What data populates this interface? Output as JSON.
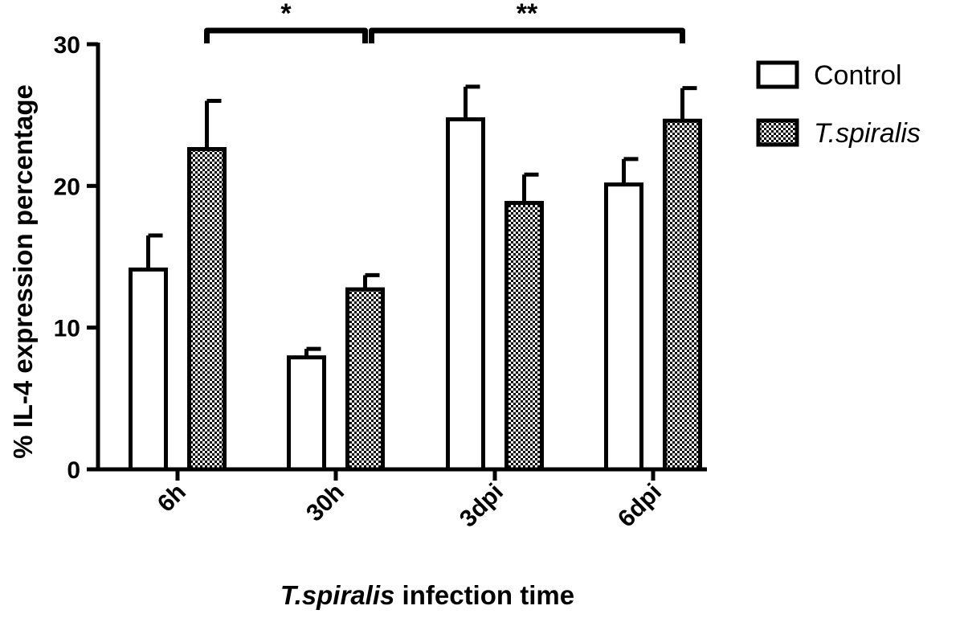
{
  "chart_data": {
    "type": "bar",
    "categories": [
      "6h",
      "30h",
      "3dpi",
      "6dpi"
    ],
    "series": [
      {
        "name": "Control",
        "values": [
          14.1,
          7.9,
          24.7,
          20.1
        ],
        "errors": [
          2.4,
          0.6,
          2.3,
          1.8
        ],
        "fill": "plain"
      },
      {
        "name": "T.spiralis",
        "values": [
          22.6,
          12.7,
          18.8,
          24.6
        ],
        "errors": [
          3.4,
          1.0,
          2.0,
          2.3
        ],
        "fill": "checker"
      }
    ],
    "ylim": [
      0,
      30
    ],
    "yticks": [
      0,
      10,
      20,
      30
    ],
    "ylabel": "% IL-4 expression percentage",
    "xlabel_italic": "T.spiralis",
    "xlabel_rest": " infection time",
    "legend_position": "top-right",
    "significance": [
      {
        "label": "*",
        "from_category": 0,
        "to_category": 1
      },
      {
        "label": "**",
        "from_category": 1,
        "to_category": 3
      }
    ],
    "colors": {
      "axis": "#000000",
      "bar_fill": "#ffffff",
      "checker": "#000000"
    }
  }
}
